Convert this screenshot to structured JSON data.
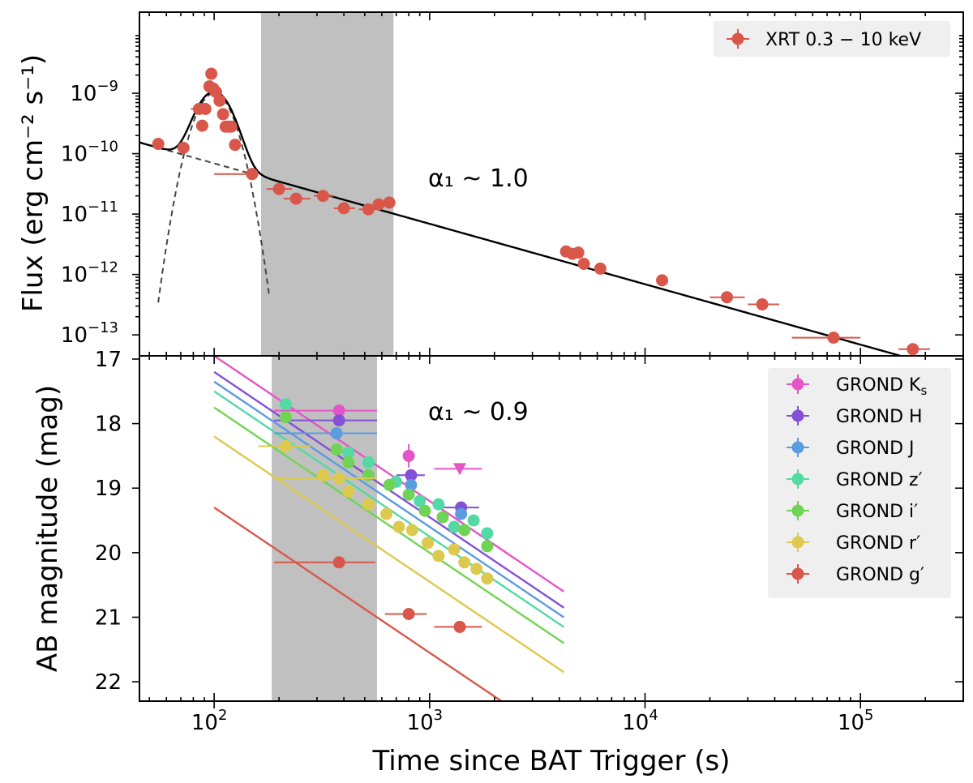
{
  "chart_data": [
    {
      "type": "scatter",
      "panel": "top",
      "ylabel": "Flux (erg cm⁻² s⁻¹)",
      "yscale": "log",
      "xscale": "log",
      "xlim": [
        45,
        300000
      ],
      "ylim": [
        4.5e-14,
        2.2e-08
      ],
      "yticks": [
        {
          "base": "10",
          "exp": "−9"
        },
        {
          "base": "10",
          "exp": "−10"
        },
        {
          "base": "10",
          "exp": "−11"
        },
        {
          "base": "10",
          "exp": "−12"
        },
        {
          "base": "10",
          "exp": "−13"
        }
      ],
      "ytick_values": [
        1e-09,
        1e-10,
        1e-11,
        1e-12,
        1e-13
      ],
      "shaded_interval": [
        165,
        680
      ],
      "annotation": {
        "text": "α₁ ~ 1.0",
        "x": 1200,
        "y": 1.5e-11
      },
      "legend": [
        {
          "label": "XRT 0.3 − 10 keV",
          "color": "#d9574a"
        }
      ],
      "series": [
        {
          "name": "XRT 0.3 − 10 keV",
          "color": "#d9574a",
          "points": [
            {
              "x": 55,
              "y": 1.45e-10
            },
            {
              "x": 72,
              "y": 1.25e-10
            },
            {
              "x": 85,
              "y": 5.5e-10,
              "xerr": [
                78,
                92
              ]
            },
            {
              "x": 88,
              "y": 2.9e-10
            },
            {
              "x": 91,
              "y": 5.5e-10
            },
            {
              "x": 95,
              "y": 1.3e-09
            },
            {
              "x": 97,
              "y": 2.1e-09
            },
            {
              "x": 99,
              "y": 1.2e-09
            },
            {
              "x": 102,
              "y": 1.05e-09
            },
            {
              "x": 106,
              "y": 7.5e-10
            },
            {
              "x": 110,
              "y": 4.5e-10
            },
            {
              "x": 113,
              "y": 2.8e-10
            },
            {
              "x": 117,
              "y": 2.8e-10
            },
            {
              "x": 120,
              "y": 2.8e-10
            },
            {
              "x": 125,
              "y": 1.4e-10
            },
            {
              "x": 150,
              "y": 4.6e-11
            },
            {
              "x": 150,
              "y": 4.6e-11,
              "xerr": [
                100,
                160
              ]
            },
            {
              "x": 200,
              "y": 2.6e-11,
              "xerr": [
                175,
                230
              ]
            },
            {
              "x": 240,
              "y": 1.8e-11,
              "xerr": [
                210,
                280
              ]
            },
            {
              "x": 320,
              "y": 2e-11,
              "xerr": [
                290,
                360
              ]
            },
            {
              "x": 400,
              "y": 1.25e-11,
              "xerr": [
                360,
                450
              ]
            },
            {
              "x": 520,
              "y": 1.2e-11,
              "xerr": [
                470,
                580
              ]
            },
            {
              "x": 580,
              "y": 1.45e-11
            },
            {
              "x": 650,
              "y": 1.55e-11
            },
            {
              "x": 4300,
              "y": 2.4e-12
            },
            {
              "x": 4600,
              "y": 2.2e-12
            },
            {
              "x": 4900,
              "y": 2.3e-12
            },
            {
              "x": 5200,
              "y": 1.5e-12
            },
            {
              "x": 6200,
              "y": 1.25e-12
            },
            {
              "x": 12000,
              "y": 8e-13
            },
            {
              "x": 24000,
              "y": 4.2e-13,
              "xerr": [
                20000,
                29000
              ]
            },
            {
              "x": 35000,
              "y": 3.2e-13,
              "xerr": [
                30000,
                42000
              ]
            },
            {
              "x": 75000,
              "y": 9e-14,
              "xerr": [
                48000,
                100000
              ]
            },
            {
              "x": 175000,
              "y": 5.8e-14,
              "xerr": [
                150000,
                210000
              ]
            }
          ]
        }
      ],
      "model": {
        "powerlaw_norm": 4.6e-11,
        "powerlaw_t0": 150,
        "alpha": 1.0,
        "flare_peak_t": 100,
        "flare_peak_flux": 1e-09,
        "flare_width_logt": 0.065
      }
    },
    {
      "type": "scatter",
      "panel": "bottom",
      "xlabel": "Time since BAT Trigger (s)",
      "ylabel": "AB magnitude (mag)",
      "xscale": "log",
      "xlim": [
        45,
        300000
      ],
      "ylim": [
        22.3,
        16.95
      ],
      "yticks": [
        "17",
        "18",
        "19",
        "20",
        "21",
        "22"
      ],
      "ytick_values": [
        17,
        18,
        19,
        20,
        21,
        22
      ],
      "xticks": [
        {
          "base": "10",
          "exp": "2"
        },
        {
          "base": "10",
          "exp": "3"
        },
        {
          "base": "10",
          "exp": "4"
        },
        {
          "base": "10",
          "exp": "5"
        }
      ],
      "xtick_values": [
        100,
        1000,
        10000,
        100000
      ],
      "shaded_interval": [
        185,
        570
      ],
      "annotation": {
        "text": "α₁ ~ 0.9",
        "x": 1200,
        "y": 17.95
      },
      "alpha": 0.9,
      "fit_range": [
        100,
        4200
      ],
      "series": [
        {
          "name": "GROND Kₛ",
          "color": "#e455c8",
          "fit_mag_at_100": 16.95,
          "points": [
            {
              "x": 380,
              "y": 17.8,
              "xerr": [
                190,
                570
              ]
            },
            {
              "x": 800,
              "y": 18.5,
              "yerr": 0.18
            }
          ],
          "upper_limits": [
            {
              "x": 1380,
              "y": 18.7,
              "xerr": [
                1050,
                1750
              ]
            }
          ]
        },
        {
          "name": "GROND H",
          "color": "#8350d6",
          "fit_mag_at_100": 17.2,
          "points": [
            {
              "x": 380,
              "y": 17.95,
              "xerr": [
                190,
                570
              ]
            },
            {
              "x": 820,
              "y": 18.8,
              "xerr": [
                700,
                950
              ]
            },
            {
              "x": 1400,
              "y": 19.3,
              "xerr": [
                1100,
                1700
              ]
            }
          ]
        },
        {
          "name": "GROND J",
          "color": "#5b9be0",
          "fit_mag_at_100": 17.35,
          "points": [
            {
              "x": 370,
              "y": 18.15,
              "xerr": [
                190,
                570
              ]
            },
            {
              "x": 820,
              "y": 18.95
            },
            {
              "x": 1400,
              "y": 19.4
            }
          ]
        },
        {
          "name": "GROND z′",
          "color": "#52d9a4",
          "fit_mag_at_100": 17.5,
          "points": [
            {
              "x": 215,
              "y": 17.7
            },
            {
              "x": 420,
              "y": 18.45
            },
            {
              "x": 520,
              "y": 18.6
            },
            {
              "x": 700,
              "y": 18.9
            },
            {
              "x": 900,
              "y": 19.2
            },
            {
              "x": 1100,
              "y": 19.25
            },
            {
              "x": 1300,
              "y": 19.6
            },
            {
              "x": 1600,
              "y": 19.5
            },
            {
              "x": 1850,
              "y": 19.7
            }
          ]
        },
        {
          "name": "GROND i′",
          "color": "#6fd455",
          "fit_mag_at_100": 17.75,
          "points": [
            {
              "x": 215,
              "y": 17.9
            },
            {
              "x": 370,
              "y": 18.4
            },
            {
              "x": 420,
              "y": 18.6
            },
            {
              "x": 520,
              "y": 18.8
            },
            {
              "x": 650,
              "y": 18.95
            },
            {
              "x": 800,
              "y": 19.1
            },
            {
              "x": 950,
              "y": 19.35
            },
            {
              "x": 1150,
              "y": 19.45
            },
            {
              "x": 1450,
              "y": 19.65
            },
            {
              "x": 1850,
              "y": 19.9
            }
          ]
        },
        {
          "name": "GROND r′",
          "color": "#dcc94e",
          "fit_mag_at_100": 18.2,
          "points": [
            {
              "x": 215,
              "y": 18.35,
              "xerr": [
                160,
                280
              ]
            },
            {
              "x": 320,
              "y": 18.8
            },
            {
              "x": 380,
              "y": 18.85,
              "xerr": [
                190,
                570
              ]
            },
            {
              "x": 420,
              "y": 19.05
            },
            {
              "x": 520,
              "y": 19.25
            },
            {
              "x": 630,
              "y": 19.4
            },
            {
              "x": 720,
              "y": 19.6
            },
            {
              "x": 830,
              "y": 19.65
            },
            {
              "x": 980,
              "y": 19.85
            },
            {
              "x": 1100,
              "y": 20.05
            },
            {
              "x": 1300,
              "y": 19.95
            },
            {
              "x": 1450,
              "y": 20.15
            },
            {
              "x": 1650,
              "y": 20.25
            },
            {
              "x": 1850,
              "y": 20.4
            }
          ]
        },
        {
          "name": "GROND g′",
          "color": "#d9574a",
          "fit_mag_at_100": 19.3,
          "points": [
            {
              "x": 380,
              "y": 20.15,
              "xerr": [
                190,
                560
              ]
            },
            {
              "x": 800,
              "y": 20.95,
              "xerr": [
                620,
                970
              ]
            },
            {
              "x": 1380,
              "y": 21.15,
              "xerr": [
                1050,
                1750
              ]
            }
          ]
        }
      ],
      "legend_labels": [
        {
          "main": "GROND K",
          "sub": "s",
          "prime": ""
        },
        {
          "main": "GROND H",
          "sub": "",
          "prime": ""
        },
        {
          "main": "GROND J",
          "sub": "",
          "prime": ""
        },
        {
          "main": "GROND z",
          "sub": "",
          "prime": "′"
        },
        {
          "main": "GROND i",
          "sub": "",
          "prime": "′"
        },
        {
          "main": "GROND r",
          "sub": "",
          "prime": "′"
        },
        {
          "main": "GROND g",
          "sub": "",
          "prime": "′"
        }
      ]
    }
  ]
}
